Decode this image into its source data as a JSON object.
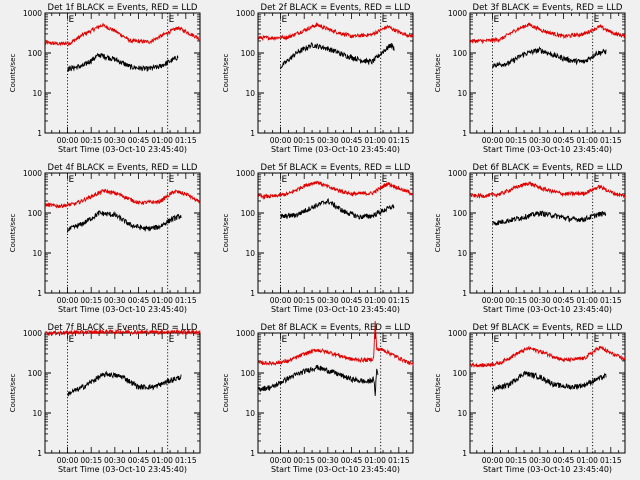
{
  "chart_data": {
    "type": "line",
    "y_scale": "log",
    "ylim": [
      1,
      1000
    ],
    "y_ticks": [
      1,
      10,
      100,
      1000
    ],
    "y_tick_labels": [
      "1",
      "10",
      "100",
      "1000"
    ],
    "ylabel": "Counts/sec",
    "xlabel": "Start Time (03-Oct-10 23:45:40)",
    "x_tick_labels": [
      "00:00",
      "00:15",
      "00:30",
      "00:45",
      "01:00",
      "01:15"
    ],
    "x_tick_minutes": [
      0,
      15,
      30,
      45,
      60,
      75
    ],
    "x_range_minutes": [
      -14.3,
      84
    ],
    "event_markers": {
      "lines_minutes": [
        0,
        63.5
      ],
      "labels": [
        "E",
        "E"
      ]
    },
    "colors": {
      "events": "#000000",
      "lld": "#e00000",
      "background": "#f0f0f0"
    },
    "panels": [
      {
        "title": "Det 1f BLACK = Events, RED = LLD",
        "lld": [
          [
            -14,
            180
          ],
          [
            -5,
            170
          ],
          [
            2,
            180
          ],
          [
            10,
            290
          ],
          [
            22,
            500
          ],
          [
            30,
            360
          ],
          [
            40,
            200
          ],
          [
            52,
            190
          ],
          [
            62,
            300
          ],
          [
            70,
            430
          ],
          [
            78,
            300
          ],
          [
            84,
            230
          ]
        ],
        "events": [
          [
            0,
            40
          ],
          [
            10,
            48
          ],
          [
            20,
            90
          ],
          [
            30,
            70
          ],
          [
            40,
            45
          ],
          [
            50,
            40
          ],
          [
            58,
            45
          ],
          [
            66,
            65
          ],
          [
            70,
            80
          ]
        ]
      },
      {
        "title": "Det 2f BLACK = Events, RED = LLD",
        "lld": [
          [
            -14,
            240
          ],
          [
            -5,
            240
          ],
          [
            5,
            250
          ],
          [
            15,
            370
          ],
          [
            23,
            510
          ],
          [
            32,
            370
          ],
          [
            45,
            260
          ],
          [
            58,
            290
          ],
          [
            68,
            460
          ],
          [
            76,
            320
          ],
          [
            84,
            260
          ]
        ],
        "events": [
          [
            0,
            45
          ],
          [
            10,
            100
          ],
          [
            20,
            160
          ],
          [
            30,
            130
          ],
          [
            40,
            90
          ],
          [
            52,
            65
          ],
          [
            58,
            60
          ],
          [
            64,
            100
          ],
          [
            70,
            160
          ],
          [
            72,
            130
          ]
        ]
      },
      {
        "title": "Det 3f BLACK = Events, RED = LLD",
        "lld": [
          [
            -14,
            200
          ],
          [
            -5,
            200
          ],
          [
            5,
            220
          ],
          [
            15,
            380
          ],
          [
            23,
            520
          ],
          [
            32,
            360
          ],
          [
            45,
            260
          ],
          [
            58,
            300
          ],
          [
            68,
            460
          ],
          [
            76,
            320
          ],
          [
            84,
            260
          ]
        ],
        "events": [
          [
            0,
            50
          ],
          [
            10,
            55
          ],
          [
            20,
            95
          ],
          [
            30,
            120
          ],
          [
            40,
            85
          ],
          [
            50,
            65
          ],
          [
            58,
            60
          ],
          [
            66,
            100
          ],
          [
            72,
            110
          ]
        ]
      },
      {
        "title": "Det 4f BLACK = Events, RED = LLD",
        "lld": [
          [
            -14,
            160
          ],
          [
            -5,
            150
          ],
          [
            5,
            170
          ],
          [
            15,
            260
          ],
          [
            23,
            360
          ],
          [
            32,
            300
          ],
          [
            45,
            180
          ],
          [
            58,
            190
          ],
          [
            68,
            350
          ],
          [
            76,
            290
          ],
          [
            84,
            180
          ]
        ],
        "events": [
          [
            0,
            38
          ],
          [
            10,
            55
          ],
          [
            20,
            100
          ],
          [
            30,
            90
          ],
          [
            40,
            50
          ],
          [
            50,
            40
          ],
          [
            58,
            45
          ],
          [
            66,
            70
          ],
          [
            72,
            85
          ]
        ]
      },
      {
        "title": "Det 5f BLACK = Events, RED = LLD",
        "lld": [
          [
            -14,
            260
          ],
          [
            -5,
            260
          ],
          [
            5,
            300
          ],
          [
            15,
            480
          ],
          [
            23,
            600
          ],
          [
            32,
            420
          ],
          [
            45,
            300
          ],
          [
            58,
            310
          ],
          [
            68,
            550
          ],
          [
            76,
            400
          ],
          [
            84,
            300
          ]
        ],
        "events": [
          [
            0,
            80
          ],
          [
            10,
            90
          ],
          [
            20,
            140
          ],
          [
            30,
            200
          ],
          [
            40,
            110
          ],
          [
            50,
            80
          ],
          [
            58,
            85
          ],
          [
            66,
            120
          ],
          [
            72,
            150
          ]
        ]
      },
      {
        "title": "Det 6f BLACK = Events, RED = LLD",
        "lld": [
          [
            -14,
            270
          ],
          [
            -5,
            270
          ],
          [
            5,
            300
          ],
          [
            15,
            440
          ],
          [
            23,
            560
          ],
          [
            32,
            400
          ],
          [
            45,
            300
          ],
          [
            58,
            310
          ],
          [
            68,
            460
          ],
          [
            76,
            320
          ],
          [
            84,
            260
          ]
        ],
        "events": [
          [
            0,
            55
          ],
          [
            10,
            65
          ],
          [
            20,
            80
          ],
          [
            30,
            100
          ],
          [
            40,
            85
          ],
          [
            50,
            70
          ],
          [
            58,
            70
          ],
          [
            66,
            90
          ],
          [
            72,
            100
          ]
        ]
      },
      {
        "title": "Det 7f BLACK = Events, RED = LLD",
        "lld": [
          [
            -14,
            1000
          ],
          [
            10,
            1050
          ],
          [
            30,
            1080
          ],
          [
            50,
            1050
          ],
          [
            70,
            1080
          ],
          [
            84,
            1050
          ]
        ],
        "events": [
          [
            0,
            30
          ],
          [
            10,
            45
          ],
          [
            20,
            80
          ],
          [
            25,
            95
          ],
          [
            35,
            80
          ],
          [
            45,
            45
          ],
          [
            55,
            45
          ],
          [
            65,
            65
          ],
          [
            72,
            80
          ]
        ]
      },
      {
        "title": "Det 8f BLACK = Events, RED = LLD",
        "lld": [
          [
            -14,
            180
          ],
          [
            -5,
            175
          ],
          [
            5,
            200
          ],
          [
            15,
            300
          ],
          [
            23,
            380
          ],
          [
            32,
            320
          ],
          [
            45,
            220
          ],
          [
            55,
            210
          ],
          [
            59,
            230
          ],
          [
            60,
            2000
          ],
          [
            61,
            400
          ],
          [
            65,
            380
          ],
          [
            70,
            300
          ],
          [
            76,
            230
          ],
          [
            84,
            160
          ]
        ],
        "events": [
          [
            -14,
            40
          ],
          [
            -5,
            45
          ],
          [
            5,
            75
          ],
          [
            15,
            110
          ],
          [
            23,
            140
          ],
          [
            32,
            110
          ],
          [
            45,
            70
          ],
          [
            55,
            60
          ],
          [
            59,
            70
          ],
          [
            60,
            30
          ],
          [
            61,
            120
          ],
          [
            62,
            90
          ]
        ]
      },
      {
        "title": "Det 9f BLACK = Events, RED = LLD",
        "lld": [
          [
            -14,
            160
          ],
          [
            -5,
            155
          ],
          [
            5,
            180
          ],
          [
            15,
            300
          ],
          [
            23,
            420
          ],
          [
            32,
            330
          ],
          [
            45,
            210
          ],
          [
            58,
            230
          ],
          [
            68,
            440
          ],
          [
            76,
            300
          ],
          [
            84,
            220
          ]
        ],
        "events": [
          [
            0,
            40
          ],
          [
            10,
            50
          ],
          [
            20,
            100
          ],
          [
            30,
            80
          ],
          [
            40,
            50
          ],
          [
            50,
            45
          ],
          [
            58,
            50
          ],
          [
            66,
            70
          ],
          [
            72,
            85
          ]
        ]
      }
    ]
  }
}
